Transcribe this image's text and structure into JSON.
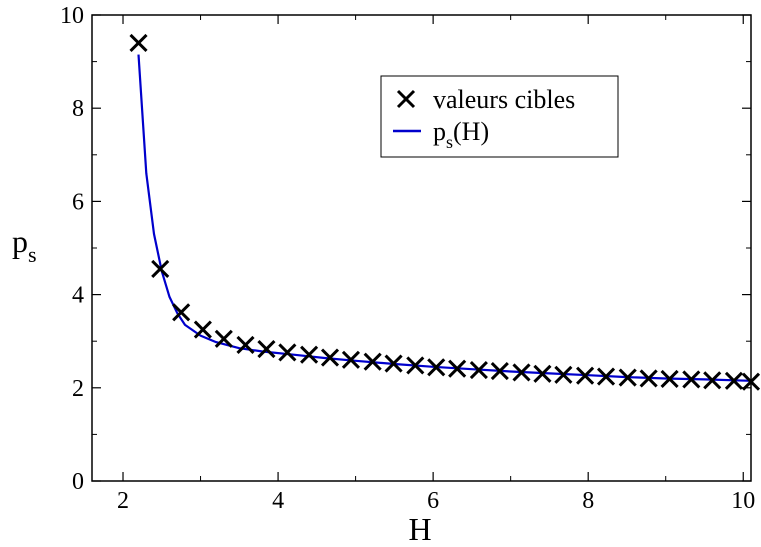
{
  "chart_data": {
    "type": "line",
    "xlabel": "H",
    "ylabel": {
      "main": "p",
      "sub": "s"
    },
    "xlim": [
      1.6,
      10.1
    ],
    "ylim": [
      0,
      10
    ],
    "xticks": [
      2,
      4,
      6,
      8,
      10
    ],
    "yticks": [
      0,
      2,
      4,
      6,
      8,
      10
    ],
    "grid": false,
    "legend_position": "top-right",
    "series": [
      {
        "name": "valeurs cibles",
        "kind": "scatter",
        "marker": "x",
        "color": "#000000",
        "x": [
          2.2,
          2.48,
          2.75,
          3.03,
          3.3,
          3.58,
          3.85,
          4.12,
          4.4,
          4.67,
          4.94,
          5.22,
          5.49,
          5.77,
          6.04,
          6.31,
          6.59,
          6.86,
          7.14,
          7.41,
          7.68,
          7.96,
          8.23,
          8.51,
          8.78,
          9.05,
          9.33,
          9.6,
          9.88,
          10.1
        ],
        "y": [
          9.4,
          4.55,
          3.62,
          3.25,
          3.05,
          2.92,
          2.83,
          2.76,
          2.71,
          2.65,
          2.6,
          2.56,
          2.52,
          2.48,
          2.44,
          2.41,
          2.38,
          2.36,
          2.33,
          2.3,
          2.28,
          2.26,
          2.24,
          2.22,
          2.2,
          2.19,
          2.18,
          2.16,
          2.15,
          2.13
        ]
      },
      {
        "name": {
          "main": "p",
          "sub": "s",
          "suffix": "(H)"
        },
        "kind": "line",
        "color": "#0000cc",
        "x": [
          2.2,
          2.3,
          2.4,
          2.5,
          2.6,
          2.7,
          2.8,
          3.0,
          3.2,
          3.5,
          3.8,
          4.2,
          4.6,
          5.0,
          5.5,
          6.0,
          6.5,
          7.0,
          7.5,
          8.0,
          8.5,
          9.0,
          9.5,
          10.1
        ],
        "y": [
          9.15,
          6.6,
          5.3,
          4.5,
          3.95,
          3.6,
          3.35,
          3.12,
          2.98,
          2.85,
          2.78,
          2.71,
          2.64,
          2.58,
          2.51,
          2.45,
          2.4,
          2.35,
          2.31,
          2.27,
          2.23,
          2.2,
          2.18,
          2.15
        ]
      }
    ]
  }
}
